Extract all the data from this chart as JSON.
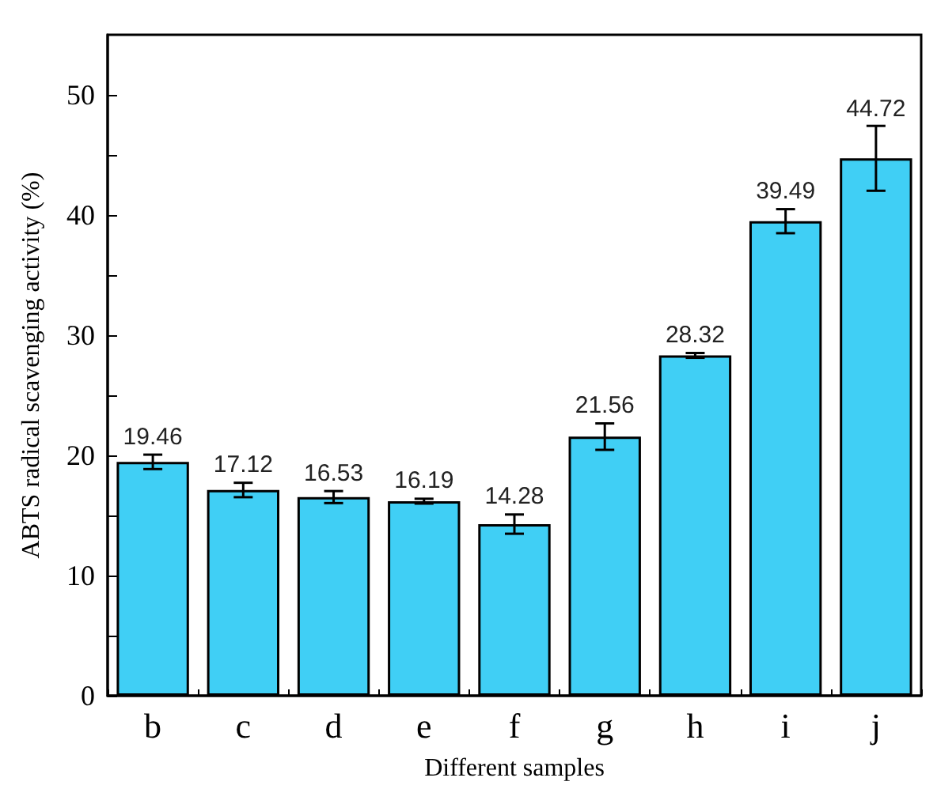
{
  "chart_data": {
    "type": "bar",
    "xlabel": "Different samples",
    "ylabel": "ABTS radical scavenging activity (%)",
    "categories": [
      "b",
      "c",
      "d",
      "e",
      "f",
      "g",
      "h",
      "i",
      "j"
    ],
    "values": [
      19.46,
      17.12,
      16.53,
      16.19,
      14.28,
      21.56,
      28.32,
      39.49,
      44.72
    ],
    "errors": [
      0.6,
      0.6,
      0.5,
      0.2,
      0.8,
      1.1,
      0.2,
      1.0,
      2.7
    ],
    "color": "#40cff5",
    "data_labels": true,
    "grid": false,
    "ylim": [
      0,
      55
    ],
    "yticks": [
      0,
      {
        "value": 5,
        "label": null
      },
      10,
      {
        "value": 15,
        "label": null
      },
      20,
      {
        "value": 25,
        "label": null
      },
      30,
      {
        "value": 35,
        "label": null
      },
      40,
      {
        "value": 45,
        "label": null
      },
      50
    ]
  }
}
